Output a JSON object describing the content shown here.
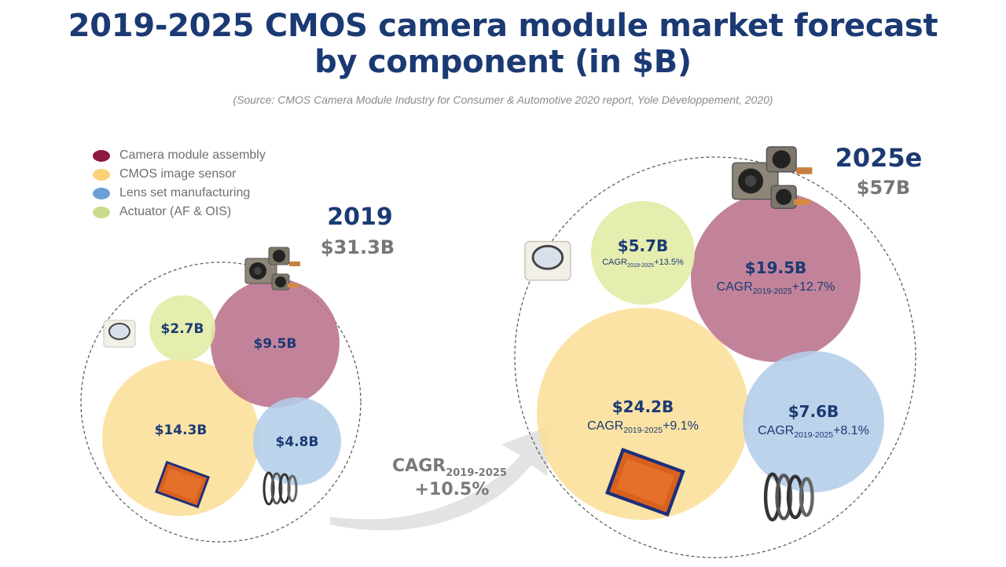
{
  "title_line1": "2019-2025 CMOS camera module market forecast",
  "title_line2": "by component (in $B)",
  "subtitle": "(Source: CMOS Camera Module Industry for Consumer & Automotive 2020 report, Yole Développement, 2020)",
  "chart_data": {
    "type": "bubble",
    "title": "2019-2025 CMOS camera module market forecast by component (in $B)",
    "subtitle": "(Source: CMOS Camera Module Industry for Consumer & Automotive 2020 report, Yole Développement, 2020)",
    "unit": "$B",
    "legend_position": "top-left",
    "series": [
      {
        "name": "Camera module assembly",
        "color": "#b9728c",
        "legend_color": "#8e1a3f"
      },
      {
        "name": "CMOS image sensor",
        "color": "#fbdf98",
        "legend_color": "#fbd27a"
      },
      {
        "name": "Lens set manufacturing",
        "color": "#b3cde9",
        "legend_color": "#6b9fd8"
      },
      {
        "name": "Actuator (AF & OIS)",
        "color": "#e1eaa4",
        "legend_color": "#c7dc8a"
      }
    ],
    "groups": [
      {
        "year": "2019",
        "total": 31.3,
        "total_label": "$31.3B",
        "values": [
          {
            "component": "Camera module assembly",
            "value": 9.5,
            "label": "$9.5B"
          },
          {
            "component": "CMOS image sensor",
            "value": 14.3,
            "label": "$14.3B"
          },
          {
            "component": "Lens set manufacturing",
            "value": 4.8,
            "label": "$4.8B"
          },
          {
            "component": "Actuator (AF & OIS)",
            "value": 2.7,
            "label": "$2.7B"
          }
        ]
      },
      {
        "year": "2025e",
        "total": 57,
        "total_label": "$57B",
        "values": [
          {
            "component": "Camera module assembly",
            "value": 19.5,
            "label": "$19.5B",
            "cagr": "+12.7%"
          },
          {
            "component": "CMOS image sensor",
            "value": 24.2,
            "label": "$24.2B",
            "cagr": "+9.1%"
          },
          {
            "component": "Lens set manufacturing",
            "value": 7.6,
            "label": "$7.6B",
            "cagr": "+8.1%"
          },
          {
            "component": "Actuator (AF & OIS)",
            "value": 5.7,
            "label": "$5.7B",
            "cagr": "+13.5%"
          }
        ]
      }
    ],
    "cagr_prefix": "CAGR",
    "cagr_period": "2019-2025",
    "overall_cagr": "+10.5%"
  }
}
